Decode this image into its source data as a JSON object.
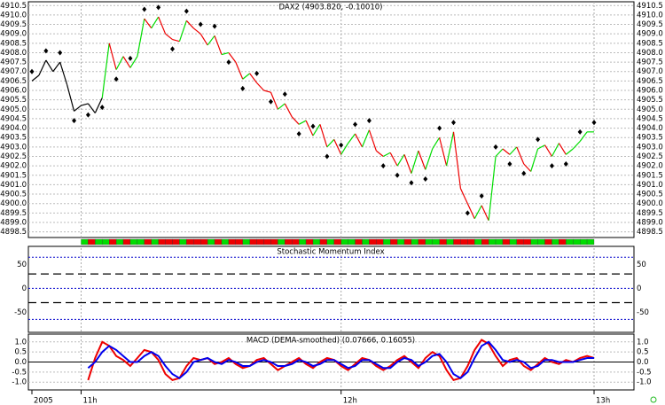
{
  "chart_data": [
    {
      "type": "price",
      "title": "DAX2 (4903.820, -0.10010)",
      "xlim": [
        0,
        80
      ],
      "xticks": [
        {
          "value": 0,
          "label": "2005"
        },
        {
          "value": 7,
          "label": "11h"
        },
        {
          "value": 44,
          "label": "12h"
        },
        {
          "value": 80,
          "label": "13h"
        }
      ],
      "ylim": [
        4898.2,
        4910.7
      ],
      "yticks": [
        {
          "value": 4898.5,
          "label": "4898.5"
        },
        {
          "value": 4899,
          "label": "4899.0"
        },
        {
          "value": 4899.5,
          "label": "4899.5"
        },
        {
          "value": 4900,
          "label": "4900.0"
        },
        {
          "value": 4900.5,
          "label": "4900.5"
        },
        {
          "value": 4901,
          "label": "4901.0"
        },
        {
          "value": 4901.5,
          "label": "4901.5"
        },
        {
          "value": 4902,
          "label": "4902.0"
        },
        {
          "value": 4902.5,
          "label": "4902.5"
        },
        {
          "value": 4903,
          "label": "4903.0"
        },
        {
          "value": 4903.5,
          "label": "4903.5"
        },
        {
          "value": 4904,
          "label": "4904.0"
        },
        {
          "value": 4904.5,
          "label": "4904.5"
        },
        {
          "value": 4905,
          "label": "4905.0"
        },
        {
          "value": 4905.5,
          "label": "4905.5"
        },
        {
          "value": 4906,
          "label": "4906.0"
        },
        {
          "value": 4906.5,
          "label": "4906.5"
        },
        {
          "value": 4907,
          "label": "4907.0"
        },
        {
          "value": 4907.5,
          "label": "4907.5"
        },
        {
          "value": 4908,
          "label": "4908.0"
        },
        {
          "value": 4908.5,
          "label": "4908.5"
        },
        {
          "value": 4909,
          "label": "4909.0"
        },
        {
          "value": 4909.5,
          "label": "4909.5"
        },
        {
          "value": 4910,
          "label": "4910.0"
        },
        {
          "value": 4910.5,
          "label": "4910.5"
        }
      ],
      "grid": true,
      "color": "#000000",
      "up_color": "#00dd00",
      "down_color": "#ee0000",
      "values": [
        4906.5,
        4906.8,
        4907.6,
        4907.0,
        4907.5,
        4906.3,
        4904.9,
        4905.2,
        4905.3,
        4904.8,
        4905.6,
        4908.5,
        4907.1,
        4907.8,
        4907.2,
        4907.8,
        4909.8,
        4909.3,
        4909.9,
        4909.0,
        4908.7,
        4908.6,
        4909.7,
        4909.3,
        4909.0,
        4908.4,
        4908.9,
        4907.9,
        4908.0,
        4907.5,
        4906.6,
        4906.9,
        4906.4,
        4906.0,
        4905.9,
        4905.0,
        4905.3,
        4904.6,
        4904.2,
        4904.4,
        4903.6,
        4904.2,
        4903.0,
        4903.4,
        4902.6,
        4903.2,
        4903.7,
        4903.0,
        4903.9,
        4902.8,
        4902.5,
        4902.7,
        4902.0,
        4902.6,
        4901.6,
        4902.8,
        4901.8,
        4902.9,
        4903.5,
        4902.0,
        4903.8,
        4900.8,
        4900.0,
        4899.2,
        4899.9,
        4899.1,
        4902.5,
        4902.9,
        4902.6,
        4903.0,
        4902.1,
        4901.7,
        4902.9,
        4903.1,
        4902.5,
        4903.2,
        4902.6,
        4902.9,
        4903.3,
        4903.8,
        4903.8
      ],
      "markers": {
        "color": "#000000",
        "x": [
          0,
          2,
          4,
          6,
          8,
          10,
          12,
          14,
          16,
          18,
          20,
          22,
          24,
          26,
          28,
          30,
          32,
          34,
          36,
          38,
          40,
          42,
          44,
          46,
          48,
          50,
          52,
          54,
          56,
          58,
          60,
          62,
          64,
          66,
          68,
          70,
          72,
          74,
          76,
          78,
          80
        ],
        "values": [
          4907.0,
          4908.1,
          4908.0,
          4904.4,
          4904.7,
          4905.1,
          4906.6,
          4907.7,
          4910.3,
          4910.4,
          4908.2,
          4910.2,
          4909.5,
          4909.4,
          4907.5,
          4906.1,
          4906.9,
          4905.4,
          4905.8,
          4903.7,
          4904.1,
          4902.5,
          4903.1,
          4904.2,
          4904.4,
          4902.0,
          4901.5,
          4901.1,
          4901.3,
          4904.0,
          4904.3,
          4899.5,
          4900.4,
          4903.0,
          4902.1,
          4901.6,
          4903.4,
          4902.0,
          4902.1,
          4903.8,
          4904.3
        ]
      }
    },
    {
      "type": "reference",
      "title": "Stochastic Momentum Index",
      "ylim": [
        -92,
        84
      ],
      "yticks": [
        50,
        0,
        -50
      ],
      "hlines": [
        {
          "value": 65,
          "color": "#0000cc",
          "style": "dotted"
        },
        {
          "value": 30,
          "color": "#000000",
          "style": "dashed"
        },
        {
          "value": 0,
          "color": "#0000cc",
          "style": "dotted"
        },
        {
          "value": -30,
          "color": "#000000",
          "style": "dashed"
        },
        {
          "value": -65,
          "color": "#0000cc",
          "style": "dotted"
        }
      ]
    },
    {
      "type": "line",
      "title": "MACD (DEMA-smoothed) (0.07666, 0.16055)",
      "ylim": [
        -1.3,
        1.3
      ],
      "yticks": [
        {
          "value": 1,
          "label": "1.0"
        },
        0.5,
        {
          "value": 0,
          "label": "0.0"
        },
        -0.5,
        {
          "value": -1,
          "label": "-1.0"
        }
      ],
      "grid": true,
      "series": [
        {
          "color": "#ee0000",
          "values": [
            null,
            null,
            null,
            null,
            null,
            null,
            null,
            null,
            -0.9,
            0.2,
            1.0,
            0.8,
            0.3,
            0.1,
            -0.2,
            0.2,
            0.6,
            0.5,
            0.1,
            -0.6,
            -0.9,
            -0.8,
            -0.2,
            0.2,
            0.1,
            0.2,
            -0.1,
            0.0,
            0.2,
            -0.1,
            -0.3,
            -0.2,
            0.1,
            0.2,
            -0.1,
            -0.4,
            -0.2,
            0.0,
            0.2,
            -0.1,
            -0.3,
            0.0,
            0.2,
            0.1,
            -0.2,
            -0.4,
            -0.1,
            0.2,
            0.1,
            -0.2,
            -0.4,
            -0.2,
            0.1,
            0.3,
            0.0,
            -0.3,
            0.2,
            0.5,
            0.3,
            -0.4,
            -0.9,
            -0.8,
            -0.2,
            0.6,
            1.1,
            0.9,
            0.3,
            -0.2,
            0.1,
            0.2,
            -0.2,
            -0.4,
            -0.1,
            0.2,
            0.0,
            -0.1,
            0.1,
            0.0,
            0.2,
            0.3,
            0.2
          ]
        },
        {
          "color": "#0000ee",
          "values": [
            null,
            null,
            null,
            null,
            null,
            null,
            null,
            null,
            -0.3,
            0.0,
            0.5,
            0.8,
            0.6,
            0.3,
            0.0,
            0.0,
            0.3,
            0.5,
            0.3,
            -0.2,
            -0.6,
            -0.8,
            -0.5,
            0.0,
            0.1,
            0.2,
            0.0,
            -0.1,
            0.1,
            0.0,
            -0.2,
            -0.2,
            0.0,
            0.1,
            0.0,
            -0.2,
            -0.2,
            -0.1,
            0.1,
            0.0,
            -0.2,
            -0.1,
            0.1,
            0.1,
            -0.1,
            -0.3,
            -0.2,
            0.1,
            0.1,
            -0.1,
            -0.3,
            -0.3,
            0.0,
            0.2,
            0.1,
            -0.2,
            0.0,
            0.3,
            0.4,
            0.0,
            -0.6,
            -0.8,
            -0.5,
            0.2,
            0.8,
            1.0,
            0.6,
            0.1,
            0.0,
            0.1,
            0.0,
            -0.3,
            -0.2,
            0.1,
            0.1,
            0.0,
            0.0,
            0.0,
            0.1,
            0.2,
            0.2
          ]
        }
      ]
    }
  ]
}
